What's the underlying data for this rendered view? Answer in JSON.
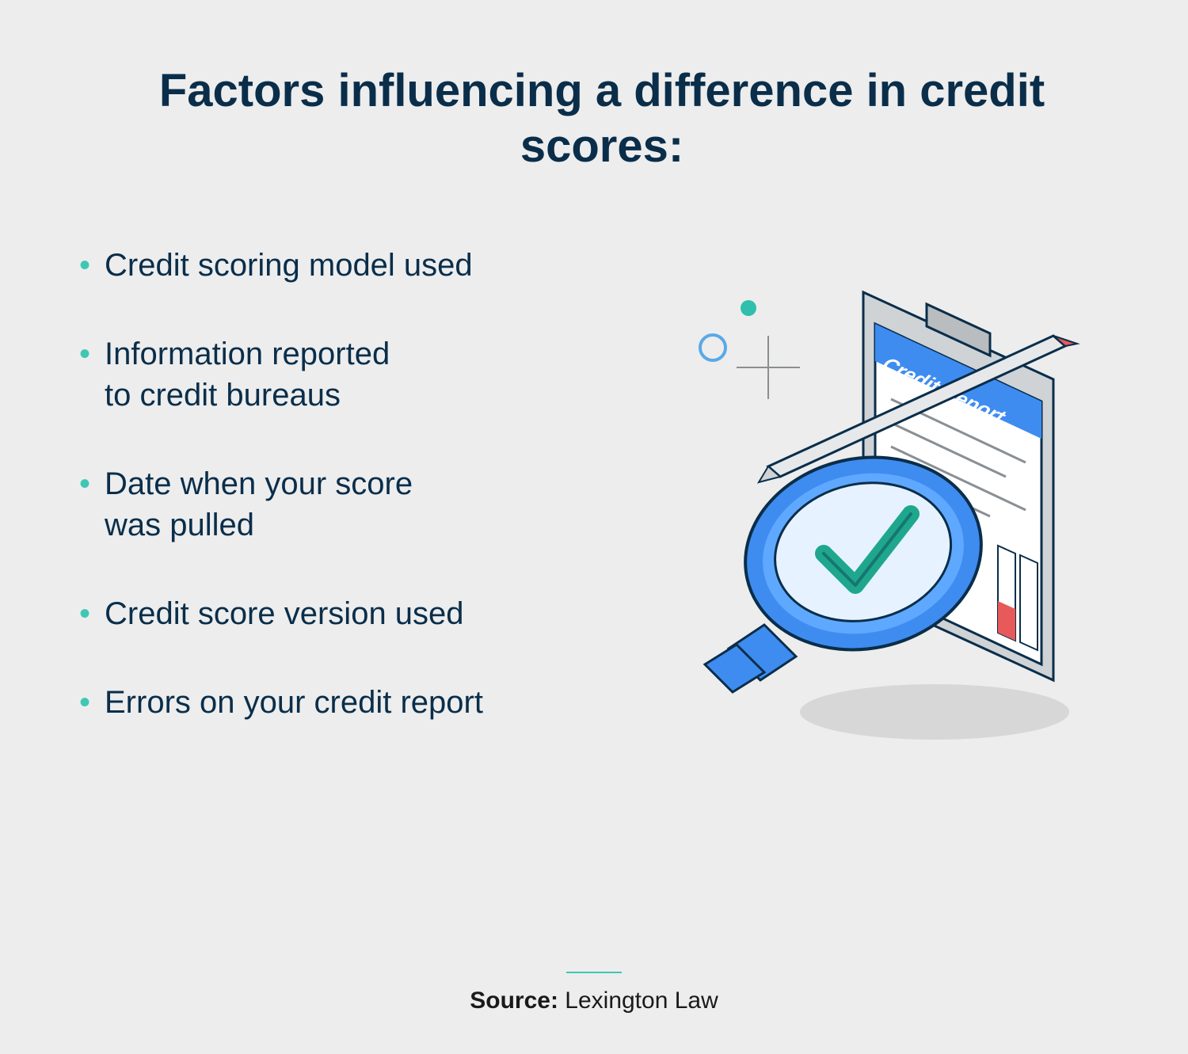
{
  "title": "Factors influencing a difference in credit scores:",
  "bullets": [
    "Credit scoring model used",
    "Information reported\nto credit bureaus",
    "Date when your score\n was pulled",
    "Credit score version used",
    "Errors on your credit report"
  ],
  "source": {
    "label": "Source:",
    "value": "Lexington Law"
  },
  "illustration": {
    "type": "infographic",
    "description": "isometric clipboard credit report with magnifying glass and checkmark",
    "colors": {
      "background": "#ededed",
      "title_text": "#0a2e4a",
      "bullet_marker": "#3fc7b4",
      "bullet_text": "#0a2e4a",
      "divider": "#3fc7b4",
      "clipboard_back": "#cfd3d6",
      "clipboard_outline": "#0a2e4a",
      "paper": "#ffffff",
      "header_band": "#3f8cf0",
      "magnifier_ring_outer": "#3f8cf0",
      "magnifier_ring_inner": "#5fa8ff",
      "magnifier_glass": "#e6f2ff",
      "checkmark": "#1fa78d",
      "pencil_body": "#cfd3d6",
      "pencil_tip": "#e85a5a",
      "shadow": "#d7d7d7",
      "accent_circle": "#5aa9e6",
      "accent_dot": "#2fbfac",
      "plus_mark": "#8a8f93",
      "bar_red": "#e85a5a",
      "text_lines": "#8a8f93"
    },
    "label_text": "Credit Report",
    "title_fontsize": 58,
    "bullet_fontsize": 40,
    "source_fontsize": 30
  }
}
